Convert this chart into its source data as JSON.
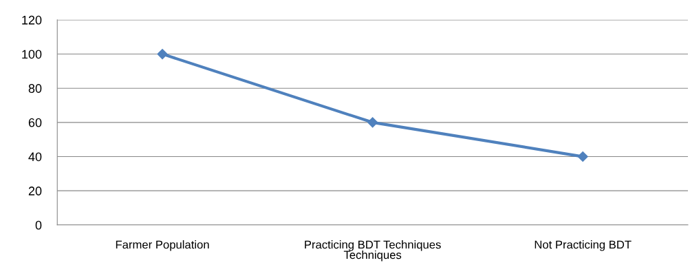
{
  "chart_data": {
    "type": "line",
    "categories": [
      "Farmer Population",
      "Practicing BDT Techniques\nTechniques",
      "Not Practicing BDT"
    ],
    "series": [
      {
        "color": "#4f81bd",
        "values": [
          100,
          60,
          40
        ]
      }
    ],
    "ylim": [
      0,
      120
    ],
    "yticks": [
      0,
      20,
      40,
      60,
      80,
      100,
      120
    ],
    "grid": "y",
    "marker": "diamond",
    "line_style": "solid"
  }
}
